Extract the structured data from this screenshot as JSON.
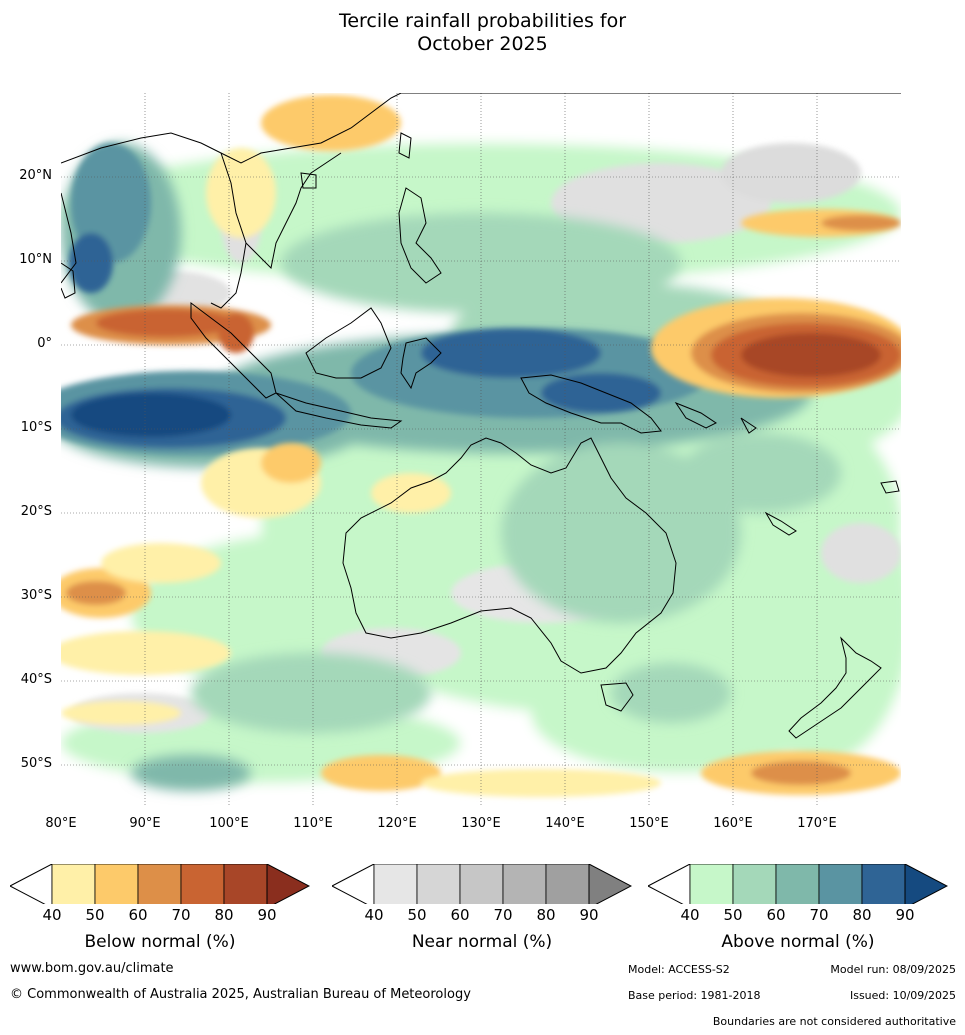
{
  "title": {
    "line1": "Tercile rainfall probabilities for",
    "line2": "October 2025"
  },
  "map": {
    "lat_labels": [
      "20°N",
      "10°N",
      "0°",
      "10°S",
      "20°S",
      "30°S",
      "40°S",
      "50°S"
    ],
    "lon_labels": [
      "80°E",
      "90°E",
      "100°E",
      "110°E",
      "120°E",
      "130°E",
      "140°E",
      "150°E",
      "160°E",
      "170°E"
    ]
  },
  "colorbars": [
    {
      "title": "Below normal (%)",
      "ticks": [
        "40",
        "50",
        "60",
        "70",
        "80",
        "90"
      ],
      "colors": [
        "#fff0a8",
        "#fdca6a",
        "#dd8f48",
        "#c96432",
        "#a84628",
        "#8a2e1e"
      ]
    },
    {
      "title": "Near normal (%)",
      "ticks": [
        "40",
        "50",
        "60",
        "70",
        "80",
        "90"
      ],
      "colors": [
        "#e6e6e6",
        "#d6d6d6",
        "#c6c6c6",
        "#b4b4b4",
        "#a0a0a0",
        "#808080"
      ]
    },
    {
      "title": "Above normal (%)",
      "ticks": [
        "40",
        "50",
        "60",
        "70",
        "80",
        "90"
      ],
      "colors": [
        "#c6f7c9",
        "#a4d8b9",
        "#7fb8aa",
        "#5a94a2",
        "#2f6495",
        "#154a80"
      ]
    }
  ],
  "footer": {
    "website": "www.bom.gov.au/climate",
    "copyright": "© Commonwealth of Australia 2025, Australian Bureau of Meteorology",
    "model": "Model: ACCESS-S2",
    "model_run": "Model run: 08/09/2025",
    "base_period": "Base period: 1981-2018",
    "issued": "Issued: 10/09/2025",
    "disclaimer": "Boundaries are not considered authoritative"
  }
}
